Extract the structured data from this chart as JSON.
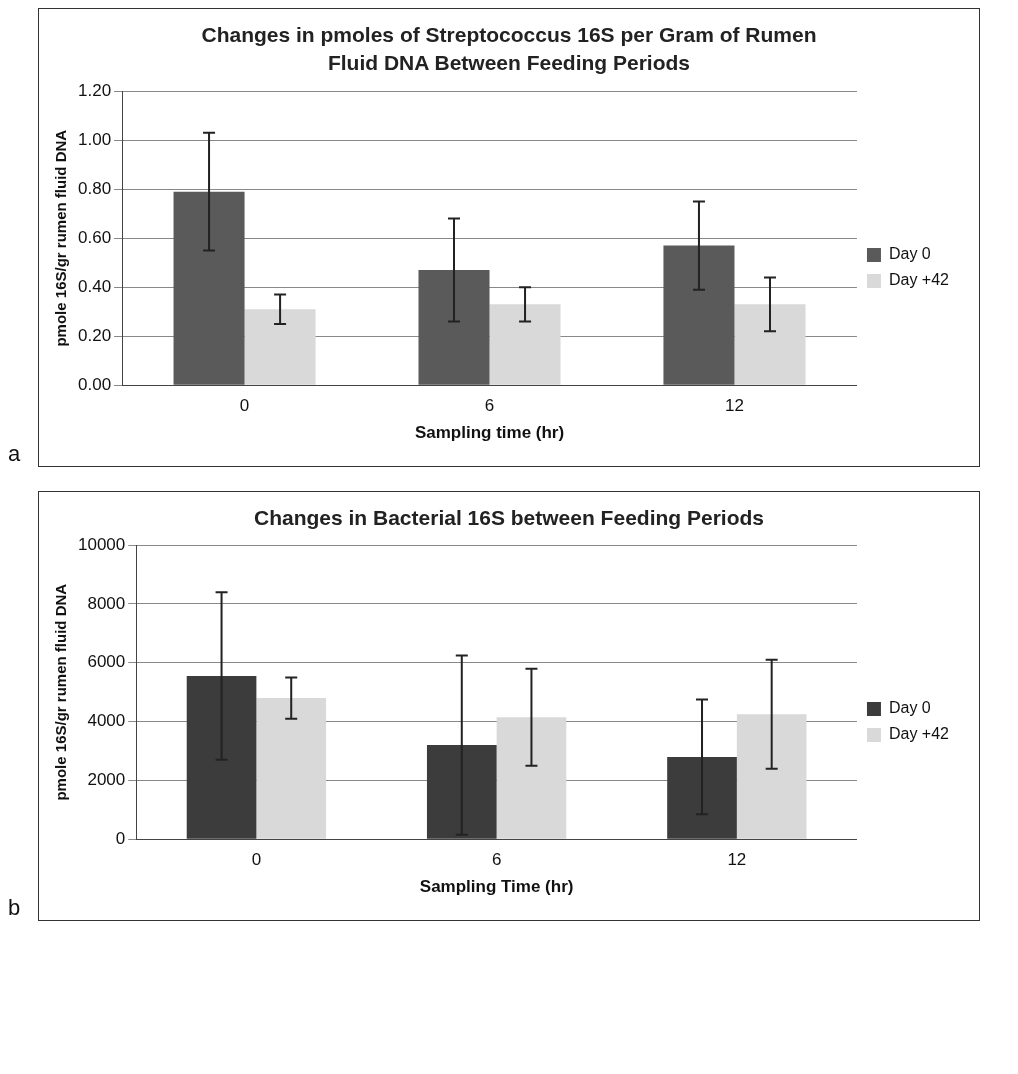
{
  "chart_data": [
    {
      "type": "bar",
      "title": "Changes in pmoles of Streptococcus 16S per Gram of Rumen Fluid DNA Between Feeding Periods",
      "xlabel": "Sampling time (hr)",
      "ylabel": "pmole 16S/gr rumen fluid DNA",
      "categories": [
        "0",
        "6",
        "12"
      ],
      "series": [
        {
          "name": "Day 0",
          "color": "#5a5a5a",
          "values": [
            0.79,
            0.47,
            0.57
          ],
          "errors": [
            0.24,
            0.21,
            0.18
          ]
        },
        {
          "name": "Day +42",
          "color": "#d9d9d9",
          "values": [
            0.31,
            0.33,
            0.33
          ],
          "errors": [
            0.06,
            0.07,
            0.11
          ]
        }
      ],
      "ylim": [
        0,
        1.2
      ],
      "yticks": [
        {
          "value": 0,
          "label": "0.00"
        },
        {
          "value": 0.2,
          "label": "0.20"
        },
        {
          "value": 0.4,
          "label": "0.40"
        },
        {
          "value": 0.6,
          "label": "0.60"
        },
        {
          "value": 0.8,
          "label": "0.80"
        },
        {
          "value": 1,
          "label": "1.00"
        },
        {
          "value": 1.2,
          "label": "1.20"
        }
      ],
      "grid": "y",
      "legend": "right",
      "annotations": [
        "a"
      ]
    },
    {
      "type": "bar",
      "title": "Changes in Bacterial 16S between Feeding Periods",
      "xlabel": "Sampling Time (hr)",
      "ylabel": "pmole 16S/gr rumen fluid DNA",
      "categories": [
        "0",
        "6",
        "12"
      ],
      "series": [
        {
          "name": "Day 0",
          "color": "#3c3c3c",
          "values": [
            5550,
            3200,
            2800
          ],
          "errors": [
            2850,
            3050,
            1950
          ]
        },
        {
          "name": "Day +42",
          "color": "#d9d9d9",
          "values": [
            4800,
            4150,
            4250
          ],
          "errors": [
            700,
            1650,
            1850
          ]
        }
      ],
      "ylim": [
        0,
        10000
      ],
      "yticks": [
        0,
        2000,
        4000,
        6000,
        8000,
        10000
      ],
      "grid": "y",
      "legend": "right",
      "annotations": [
        "b"
      ]
    }
  ]
}
